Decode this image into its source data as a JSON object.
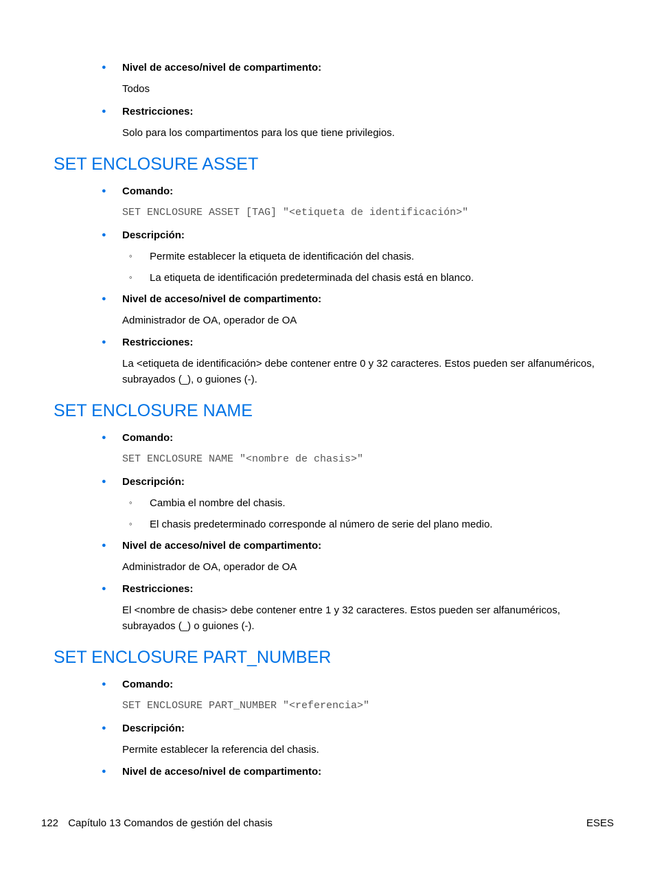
{
  "colors": {
    "accent": "#0073e6",
    "text": "#000000",
    "mono": "#555555",
    "background": "#ffffff"
  },
  "typography": {
    "body_font": "Arial",
    "mono_font": "Courier New",
    "heading_size_pt": 19,
    "body_size_pt": 11
  },
  "top_section": {
    "items": [
      {
        "label": "Nivel de acceso/nivel de compartimento:",
        "body": "Todos"
      },
      {
        "label": "Restricciones:",
        "body": "Solo para los compartimentos para los que tiene privilegios."
      }
    ]
  },
  "sections": [
    {
      "heading": "SET ENCLOSURE ASSET",
      "items": [
        {
          "label": "Comando:",
          "body_mono": "SET ENCLOSURE ASSET [TAG] \"<etiqueta de identificación>\""
        },
        {
          "label": "Descripción:",
          "sublist": [
            "Permite establecer la etiqueta de identificación del chasis.",
            "La etiqueta de identificación predeterminada del chasis está en blanco."
          ]
        },
        {
          "label": "Nivel de acceso/nivel de compartimento:",
          "body": "Administrador de OA, operador de OA"
        },
        {
          "label": "Restricciones:",
          "body": "La <etiqueta de identificación> debe contener entre 0 y 32 caracteres. Estos pueden ser alfanuméricos, subrayados (_), o guiones (-)."
        }
      ]
    },
    {
      "heading": "SET ENCLOSURE NAME",
      "items": [
        {
          "label": "Comando:",
          "body_mono": "SET ENCLOSURE NAME \"<nombre de chasis>\""
        },
        {
          "label": "Descripción:",
          "sublist": [
            "Cambia el nombre del chasis.",
            "El chasis predeterminado corresponde al número de serie del plano medio."
          ]
        },
        {
          "label": "Nivel de acceso/nivel de compartimento:",
          "body": "Administrador de OA, operador de OA"
        },
        {
          "label": "Restricciones:",
          "body": "El <nombre de chasis> debe contener entre 1 y 32 caracteres. Estos pueden ser alfanuméricos, subrayados (_) o guiones (-)."
        }
      ]
    },
    {
      "heading": "SET ENCLOSURE PART_NUMBER",
      "items": [
        {
          "label": "Comando:",
          "body_mono": "SET ENCLOSURE PART_NUMBER \"<referencia>\""
        },
        {
          "label": "Descripción:",
          "body": "Permite establecer la referencia del chasis."
        },
        {
          "label": "Nivel de acceso/nivel de compartimento:"
        }
      ]
    }
  ],
  "footer": {
    "page_number": "122",
    "chapter": "Capítulo 13   Comandos de gestión del chasis",
    "right": "ESES"
  }
}
